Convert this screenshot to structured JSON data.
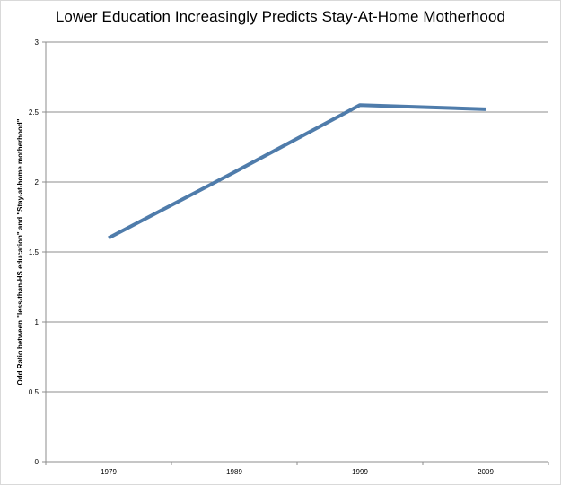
{
  "chart_data": {
    "type": "line",
    "title": "Lower Education Increasingly Predicts Stay-At-Home Motherhood",
    "xlabel": "",
    "ylabel": "Odd Ratio between \"less-than-HS education\" and \"Stay-at-home motherhood\"",
    "categories": [
      "1979",
      "1989",
      "1999",
      "2009"
    ],
    "series": [
      {
        "values": [
          1.6,
          2.07,
          2.55,
          2.52
        ]
      }
    ],
    "ylim": [
      0,
      3
    ],
    "yticks": [
      "0",
      "0.5",
      "1",
      "1.5",
      "2",
      "2.5",
      "3"
    ],
    "grid": true,
    "legend": "none",
    "line_color": "#4f7cab"
  }
}
